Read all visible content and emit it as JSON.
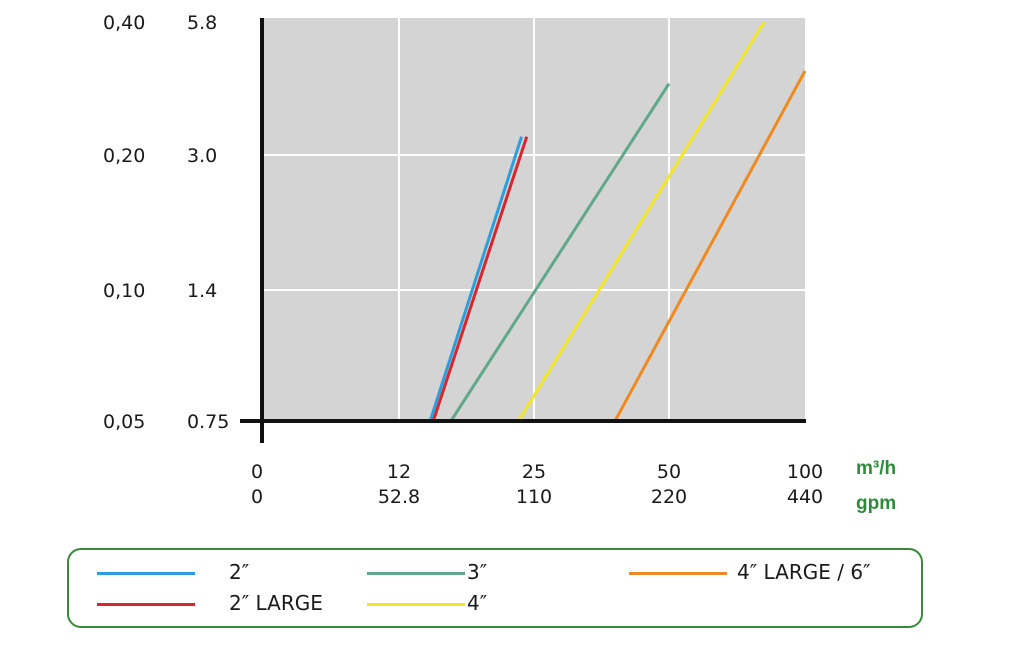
{
  "chart_data": {
    "type": "line",
    "title": "",
    "x_units": {
      "primary": "m³/h",
      "secondary": "gpm"
    },
    "x_ticks": [
      {
        "primary": "0",
        "secondary": "0"
      },
      {
        "primary": "12",
        "secondary": "52.8"
      },
      {
        "primary": "25",
        "secondary": "110"
      },
      {
        "primary": "50",
        "secondary": "220"
      },
      {
        "primary": "100",
        "secondary": "440"
      }
    ],
    "y_ticks": [
      {
        "primary": "0,05",
        "secondary": "0.75"
      },
      {
        "primary": "0,10",
        "secondary": "1.4"
      },
      {
        "primary": "0,20",
        "secondary": "3.0"
      },
      {
        "primary": "0,40",
        "secondary": "5.8"
      }
    ],
    "grid": true,
    "legend_position": "bottom",
    "series": [
      {
        "name": "2″",
        "color": "#2b9fdc",
        "points": [
          [
            15.0,
            0.05
          ],
          [
            23.8,
            0.22
          ]
        ]
      },
      {
        "name": "2″ LARGE",
        "color": "#d9262e",
        "points": [
          [
            15.3,
            0.05
          ],
          [
            24.3,
            0.22
          ]
        ]
      },
      {
        "name": "3″",
        "color": "#5fa88a",
        "points": [
          [
            17.0,
            0.05
          ],
          [
            50.0,
            0.29
          ]
        ]
      },
      {
        "name": "4″",
        "color": "#f2e62a",
        "points": [
          [
            23.5,
            0.05
          ],
          [
            85.0,
            0.4
          ]
        ]
      },
      {
        "name": "4″ LARGE / 6″",
        "color": "#ee8a1f",
        "points": [
          [
            40.0,
            0.05
          ],
          [
            100.0,
            0.31
          ]
        ]
      }
    ]
  },
  "legend": {
    "items": [
      {
        "label": "2″",
        "color": "#2b9fdc"
      },
      {
        "label": "2″ LARGE",
        "color": "#d9262e"
      },
      {
        "label": "3″",
        "color": "#5fa88a"
      },
      {
        "label": "4″",
        "color": "#f2e62a"
      },
      {
        "label": "4″ LARGE / 6″",
        "color": "#ee8a1f"
      }
    ]
  }
}
